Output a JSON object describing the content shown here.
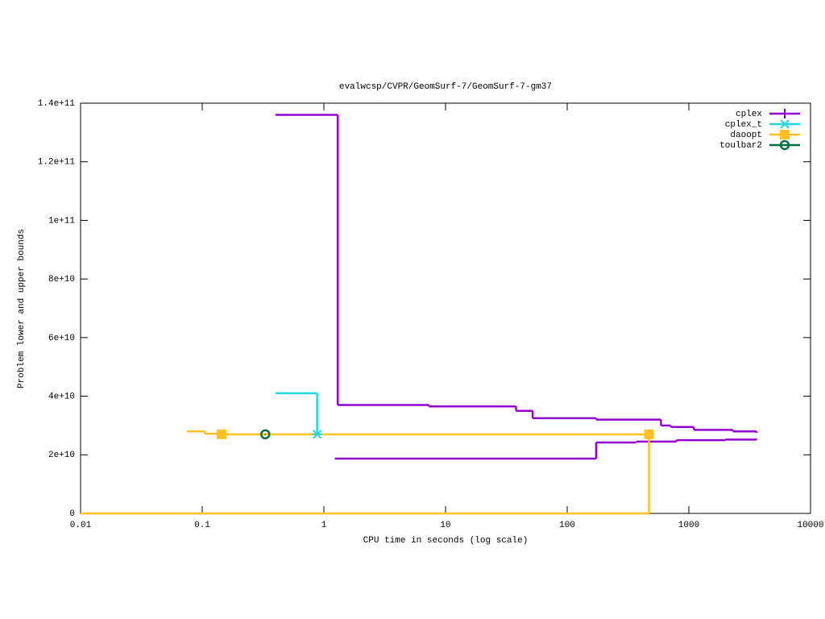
{
  "chart_data": {
    "type": "step",
    "title": "evalwcsp/CVPR/GeomSurf-7/GeomSurf-7-gm37",
    "xlabel": "CPU time in seconds (log scale)",
    "ylabel": "Problem lower and upper bounds",
    "xscale": "log",
    "xlim": [
      0.01,
      10000
    ],
    "ylim": [
      0,
      140000000000
    ],
    "xticks": [
      0.01,
      0.1,
      1,
      10,
      100,
      1000,
      10000
    ],
    "yticks": [
      0,
      {
        "value": 20000000000,
        "label": "2e+10"
      },
      {
        "value": 40000000000,
        "label": "4e+10"
      },
      {
        "value": 60000000000,
        "label": "6e+10"
      },
      {
        "value": 80000000000,
        "label": "8e+10"
      },
      {
        "value": 100000000000,
        "label": "1e+11"
      },
      {
        "value": 120000000000,
        "label": "1.2e+11"
      },
      {
        "value": 140000000000,
        "label": "1.4e+11"
      }
    ],
    "legend": "top-right",
    "series": [
      {
        "name": "cplex",
        "color": "#9400d3",
        "marker": "plus",
        "x": [
          0.4,
          1.3,
          7.3,
          38,
          52,
          173,
          590,
          710,
          1100,
          2300,
          3600
        ],
        "values": [
          136000000000,
          37000000000,
          36500000000,
          35000000000,
          32500000000,
          32000000000,
          30000000000,
          29500000000,
          28500000000,
          28000000000,
          27500000000
        ],
        "lower_x": [
          1.23,
          173,
          370,
          790,
          2000,
          3600
        ],
        "lower_values": [
          18700000000,
          24200000000,
          24500000000,
          25000000000,
          25200000000,
          25500000000
        ]
      },
      {
        "name": "cplex_t",
        "color": "#20d8e0",
        "marker": "cross",
        "x": [
          0.4,
          0.88
        ],
        "values": [
          41000000000,
          27000000000
        ],
        "marker_x": [
          0.88
        ],
        "marker_values": [
          27000000000
        ]
      },
      {
        "name": "daoopt",
        "color": "#ffc020",
        "marker": "square",
        "x": [
          0.075,
          0.105,
          0.144,
          470,
          470
        ],
        "values": [
          28000000000,
          27200000000,
          27000000000,
          27000000000,
          0
        ],
        "lower_x": [
          0.01,
          470
        ],
        "lower_values": [
          0,
          0
        ],
        "marker_x": [
          0.144,
          470
        ],
        "marker_values": [
          27000000000,
          27000000000
        ]
      },
      {
        "name": "toulbar2",
        "color": "#007040",
        "marker": "circle",
        "x": [
          0.33
        ],
        "values": [
          27000000000
        ],
        "marker_x": [
          0.33
        ],
        "marker_values": [
          27000000000
        ]
      }
    ]
  }
}
